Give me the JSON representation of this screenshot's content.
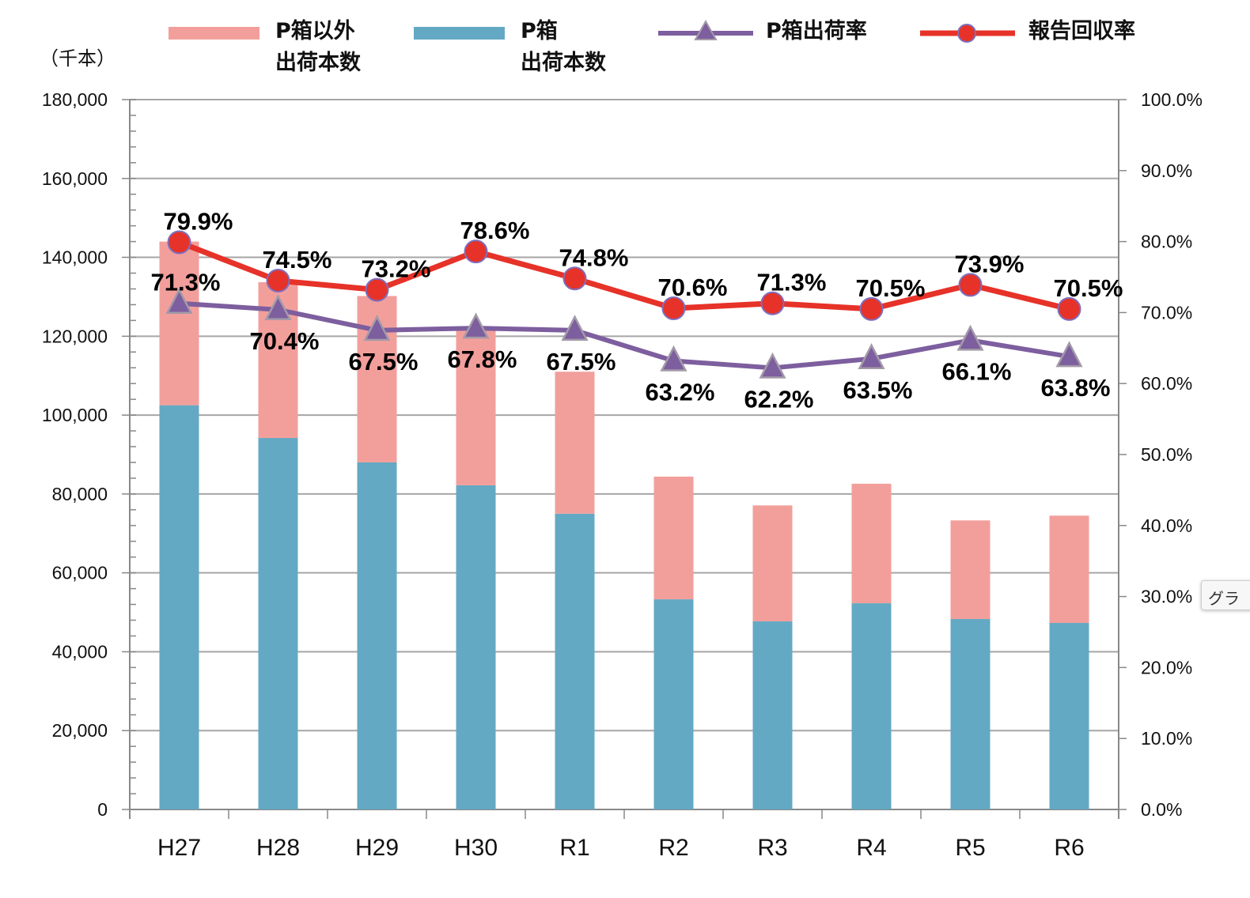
{
  "chart_data": {
    "type": "bar",
    "stacked": true,
    "title": "",
    "y_left_unit": "（千本）",
    "categories": [
      "H27",
      "H28",
      "H29",
      "H30",
      "R1",
      "R2",
      "R3",
      "R4",
      "R5",
      "R6"
    ],
    "y_left_ticks": [
      "0",
      "20,000",
      "40,000",
      "60,000",
      "80,000",
      "100,000",
      "120,000",
      "140,000",
      "160,000",
      "180,000"
    ],
    "y_right_ticks": [
      "0.0%",
      "10.0%",
      "20.0%",
      "30.0%",
      "40.0%",
      "50.0%",
      "60.0%",
      "70.0%",
      "80.0%",
      "90.0%",
      "100.0%"
    ],
    "ylim_left": [
      0,
      180000
    ],
    "ylim_right": [
      0,
      100
    ],
    "grid": true,
    "legend_position": "top",
    "bar_series": [
      {
        "name_lines": [
          "P箱",
          "出荷本数"
        ],
        "color": "#64a9c3",
        "values": [
          102500,
          94200,
          88000,
          82200,
          75000,
          53300,
          47700,
          52300,
          48300,
          47300
        ]
      },
      {
        "name_lines": [
          "P箱以外",
          "出荷本数"
        ],
        "color": "#f29f9c",
        "values": [
          41500,
          39500,
          42200,
          39600,
          36000,
          31100,
          29400,
          30300,
          25000,
          27200
        ]
      }
    ],
    "line_series": [
      {
        "name": "P箱出荷率",
        "color": "#7d5e9e",
        "marker": "triangle",
        "values": [
          71.3,
          70.4,
          67.5,
          67.8,
          67.5,
          63.2,
          62.2,
          63.5,
          66.1,
          63.8
        ],
        "labels": [
          "71.3%",
          "70.4%",
          "67.5%",
          "67.8%",
          "67.5%",
          "63.2%",
          "62.2%",
          "63.5%",
          "66.1%",
          "63.8%"
        ]
      },
      {
        "name": "報告回収率",
        "color": "#e63228",
        "marker": "circle",
        "values": [
          79.9,
          74.5,
          73.2,
          78.6,
          74.8,
          70.6,
          71.3,
          70.5,
          73.9,
          70.5
        ],
        "labels": [
          "79.9%",
          "74.5%",
          "73.2%",
          "78.6%",
          "74.8%",
          "70.6%",
          "71.3%",
          "70.5%",
          "73.9%",
          "70.5%"
        ]
      }
    ]
  },
  "overlay": {
    "tooltip_text": "グラ"
  }
}
